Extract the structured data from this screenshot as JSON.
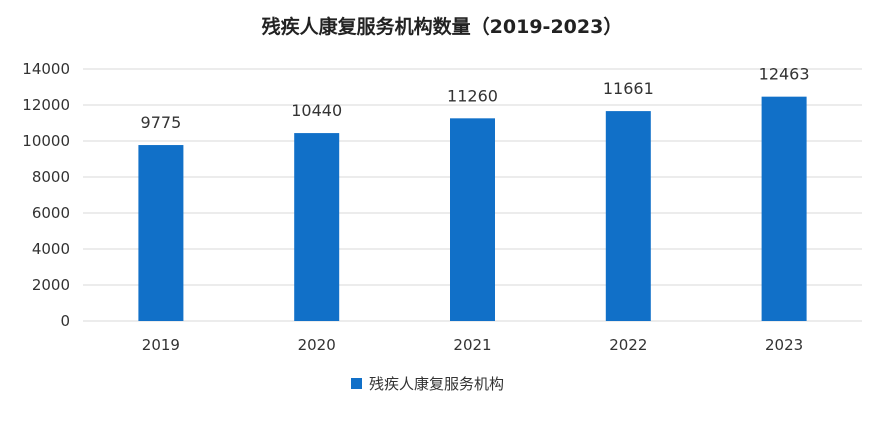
{
  "chart_data": {
    "type": "bar",
    "title": "残疾人康复服务机构数量（2019-2023）",
    "categories": [
      "2019",
      "2020",
      "2021",
      "2022",
      "2023"
    ],
    "series": [
      {
        "name": "残疾人康复服务机构",
        "values": [
          9775,
          10440,
          11260,
          11661,
          12463
        ],
        "color": "#1170C8"
      }
    ],
    "data_labels": [
      "9775",
      "10440",
      "11260",
      "11661",
      "12463"
    ],
    "ylim": [
      0,
      14000
    ],
    "yticks": [
      "0",
      "2000",
      "4000",
      "6000",
      "8000",
      "10000",
      "12000",
      "14000"
    ],
    "xlabel": "",
    "ylabel": "",
    "grid": true,
    "legend_position": "bottom-center"
  },
  "colors": {
    "bar": "#1170C8",
    "grid": "#D9D9D9",
    "text": "#333333"
  }
}
